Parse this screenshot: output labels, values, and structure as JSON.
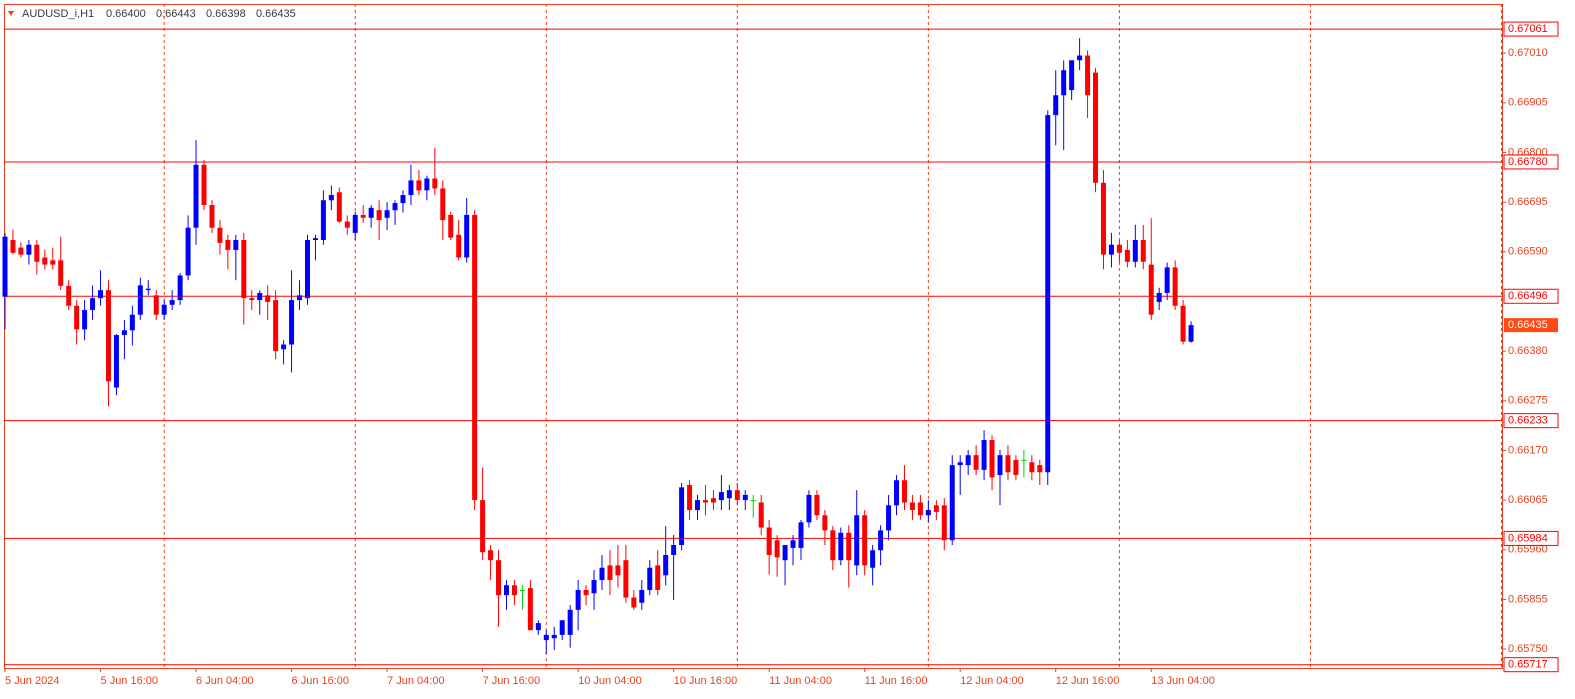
{
  "chart_data": {
    "type": "candlestick",
    "title": "AUDUSD_i,H1",
    "header_values": [
      {
        "value": 0.664,
        "label": "0.66400"
      },
      {
        "value": 0.66443,
        "label": "0.66443"
      },
      {
        "value": 0.66398,
        "label": "0.66398"
      },
      {
        "value": 0.66435,
        "label": "0.66435"
      }
    ],
    "categories": [
      "5 Jun 2024",
      null,
      null,
      null,
      null,
      null,
      null,
      null,
      null,
      null,
      null,
      null,
      "5 Jun 16:00",
      null,
      null,
      null,
      null,
      null,
      null,
      null,
      null,
      null,
      null,
      null,
      "6 Jun 04:00",
      null,
      null,
      null,
      null,
      null,
      null,
      null,
      null,
      null,
      null,
      null,
      "6 Jun 16:00",
      null,
      null,
      null,
      null,
      null,
      null,
      null,
      null,
      null,
      null,
      null,
      "7 Jun 04:00",
      null,
      null,
      null,
      null,
      null,
      null,
      null,
      null,
      null,
      null,
      null,
      "7 Jun 16:00",
      null,
      null,
      null,
      null,
      null,
      null,
      null,
      null,
      null,
      null,
      null,
      "10 Jun 04:00",
      null,
      null,
      null,
      null,
      null,
      null,
      null,
      null,
      null,
      null,
      null,
      "10 Jun 16:00",
      null,
      null,
      null,
      null,
      null,
      null,
      null,
      null,
      null,
      null,
      null,
      "11 Jun 04:00",
      null,
      null,
      null,
      null,
      null,
      null,
      null,
      null,
      null,
      null,
      null,
      "11 Jun 16:00",
      null,
      null,
      null,
      null,
      null,
      null,
      null,
      null,
      null,
      null,
      null,
      "12 Jun 04:00",
      null,
      null,
      null,
      null,
      null,
      null,
      null,
      null,
      null,
      null,
      null,
      "12 Jun 16:00",
      null,
      null,
      null,
      null,
      null,
      null,
      null,
      null,
      null,
      null,
      null,
      "13 Jun 04:00",
      null,
      null,
      null,
      null,
      null
    ],
    "open": [
      0.66495,
      0.66615,
      0.66599,
      0.66584,
      0.66605,
      0.66578,
      0.66572,
      0.66572,
      0.66518,
      0.66476,
      0.66426,
      0.66467,
      0.66492,
      0.66509,
      0.66303,
      0.66414,
      0.66424,
      0.66457,
      0.66509,
      0.66498,
      0.66457,
      0.66478,
      0.66488,
      0.6654,
      0.66641,
      0.66774,
      0.66689,
      0.66641,
      0.66615,
      0.66594,
      0.66615,
      0.66492,
      0.66488,
      0.66498,
      0.66488,
      0.66384,
      0.66394,
      0.66488,
      0.66492,
      0.66615,
      0.66615,
      0.66699,
      0.66716,
      0.66654,
      0.6663,
      0.66668,
      0.66662,
      0.66678,
      0.66662,
      0.66678,
      0.66693,
      0.6671,
      0.66741,
      0.6672,
      0.66745,
      0.66724,
      0.66668,
      0.66626,
      0.66578,
      0.66668,
      0.66065,
      0.65959,
      0.65938,
      0.65864,
      0.65885,
      0.65875,
      0.65879,
      0.6579,
      0.65769,
      0.65773,
      0.6578,
      0.6578,
      0.65833,
      0.65875,
      0.65868,
      0.65896,
      0.65927,
      0.65927,
      0.65938,
      0.65859,
      0.65848,
      0.65875,
      0.65927,
      0.65906,
      0.65949,
      0.6597,
      0.66097,
      0.66044,
      0.66065,
      0.66069,
      0.66065,
      0.66069,
      0.66086,
      0.66065,
      0.66065,
      0.6606,
      0.66007,
      0.6598,
      0.65938,
      0.65964,
      0.65964,
      0.66018,
      0.66076,
      0.66033,
      0.66001,
      0.65938,
      0.65996,
      0.65927,
      0.66033,
      0.65922,
      0.65959,
      0.66001,
      0.66054,
      0.66107,
      0.6606,
      0.6606,
      0.66033,
      0.66054,
      0.66054,
      0.6598,
      0.66139,
      0.66139,
      0.6616,
      0.66129,
      0.66192,
      0.66118,
      0.6616,
      0.6615,
      0.6615,
      0.66145,
      0.66139,
      0.66124,
      0.66879,
      0.66921,
      0.66932,
      0.66995,
      0.67005,
      0.66969,
      0.66736,
      0.66584,
      0.66605,
      0.66594,
      0.66569,
      0.66615,
      0.66563,
      0.66484,
      0.66503,
      0.66557,
      0.66476,
      0.664
    ],
    "high": [
      0.6663,
      0.66637,
      0.6661,
      0.66615,
      0.66615,
      0.66595,
      0.66599,
      0.66622,
      0.6653,
      0.66488,
      0.66488,
      0.66519,
      0.66551,
      0.6653,
      0.66416,
      0.66446,
      0.66476,
      0.66535,
      0.6653,
      0.66509,
      0.66488,
      0.66509,
      0.66545,
      0.66667,
      0.66826,
      0.66784,
      0.66699,
      0.66657,
      0.66626,
      0.66626,
      0.6663,
      0.66509,
      0.66509,
      0.66519,
      0.66509,
      0.66403,
      0.66551,
      0.6653,
      0.66626,
      0.66626,
      0.6672,
      0.6673,
      0.66726,
      0.66667,
      0.66675,
      0.66689,
      0.66689,
      0.66699,
      0.66695,
      0.66699,
      0.6672,
      0.66774,
      0.66763,
      0.66751,
      0.6681,
      0.66741,
      0.66675,
      0.66657,
      0.66704,
      0.66678,
      0.66134,
      0.6597,
      0.65959,
      0.65896,
      0.65896,
      0.65885,
      0.65896,
      0.65811,
      0.6579,
      0.65797,
      0.65811,
      0.65843,
      0.65896,
      0.65885,
      0.65917,
      0.65949,
      0.65959,
      0.6597,
      0.6597,
      0.65875,
      0.65896,
      0.65938,
      0.65959,
      0.6601,
      0.65991,
      0.66101,
      0.66107,
      0.66076,
      0.66097,
      0.66086,
      0.66118,
      0.66097,
      0.66101,
      0.66086,
      0.66076,
      0.66076,
      0.66023,
      0.65991,
      0.65959,
      0.65991,
      0.66023,
      0.66086,
      0.66086,
      0.66044,
      0.6601,
      0.66007,
      0.66012,
      0.66086,
      0.66044,
      0.6597,
      0.66012,
      0.66076,
      0.66118,
      0.66139,
      0.66076,
      0.66076,
      0.66065,
      0.66065,
      0.66069,
      0.6616,
      0.6616,
      0.66171,
      0.66181,
      0.66213,
      0.66202,
      0.66171,
      0.66181,
      0.6616,
      0.66171,
      0.6616,
      0.6615,
      0.66889,
      0.66974,
      0.66995,
      0.66995,
      0.67042,
      0.67016,
      0.66979,
      0.66763,
      0.6663,
      0.66615,
      0.66615,
      0.66647,
      0.66647,
      0.66661,
      0.66514,
      0.66567,
      0.66572,
      0.66488,
      0.66443
    ],
    "low": [
      0.66426,
      0.66584,
      0.66578,
      0.66563,
      0.66542,
      0.66553,
      0.66553,
      0.66509,
      0.66467,
      0.66394,
      0.66403,
      0.66446,
      0.66476,
      0.66263,
      0.66287,
      0.66363,
      0.66392,
      0.66446,
      0.66498,
      0.66446,
      0.66446,
      0.66467,
      0.66478,
      0.6653,
      0.66605,
      0.66678,
      0.6663,
      0.66584,
      0.66553,
      0.6653,
      0.66436,
      0.66467,
      0.66457,
      0.66446,
      0.66363,
      0.66352,
      0.66335,
      0.66467,
      0.66478,
      0.66572,
      0.66605,
      0.66678,
      0.66651,
      0.66626,
      0.66615,
      0.66651,
      0.66641,
      0.66615,
      0.66636,
      0.66647,
      0.66673,
      0.66689,
      0.6671,
      0.66699,
      0.6671,
      0.66615,
      0.66615,
      0.66572,
      0.66567,
      0.66044,
      0.65938,
      0.65896,
      0.65797,
      0.65833,
      0.65843,
      0.65833,
      0.6579,
      0.6578,
      0.6574,
      0.65748,
      0.65769,
      0.65753,
      0.6579,
      0.65843,
      0.65833,
      0.65875,
      0.65864,
      0.6588,
      0.65848,
      0.65833,
      0.65833,
      0.65864,
      0.65864,
      0.65885,
      0.65854,
      0.65959,
      0.66023,
      0.66023,
      0.66033,
      0.66044,
      0.66044,
      0.66044,
      0.66054,
      0.66044,
      0.66028,
      0.65991,
      0.65908,
      0.65903,
      0.65885,
      0.65927,
      0.65938,
      0.66007,
      0.66023,
      0.6597,
      0.65917,
      0.65927,
      0.6588,
      0.65906,
      0.65906,
      0.65885,
      0.65927,
      0.6598,
      0.66033,
      0.66044,
      0.66023,
      0.66023,
      0.66018,
      0.66023,
      0.65959,
      0.6597,
      0.66076,
      0.66118,
      0.66118,
      0.66107,
      0.66086,
      0.66054,
      0.66107,
      0.66107,
      0.66113,
      0.66107,
      0.66097,
      0.66097,
      0.66815,
      0.66805,
      0.66911,
      0.66974,
      0.66873,
      0.66716,
      0.66553,
      0.66557,
      0.66567,
      0.66557,
      0.66557,
      0.66553,
      0.66446,
      0.66467,
      0.66488,
      0.66467,
      0.66394,
      0.66398
    ],
    "close": [
      0.66622,
      0.66588,
      0.66584,
      0.66605,
      0.66569,
      0.66563,
      0.66563,
      0.66518,
      0.66476,
      0.66426,
      0.66467,
      0.66492,
      0.66509,
      0.66316,
      0.66414,
      0.66424,
      0.66457,
      0.66519,
      0.66512,
      0.66457,
      0.66478,
      0.66488,
      0.6654,
      0.66641,
      0.66774,
      0.66689,
      0.66641,
      0.66609,
      0.66594,
      0.66615,
      0.66492,
      0.66488,
      0.66503,
      0.66484,
      0.6638,
      0.66394,
      0.66488,
      0.66498,
      0.66615,
      0.66619,
      0.66699,
      0.6671,
      0.66654,
      0.66641,
      0.66668,
      0.66662,
      0.66683,
      0.66657,
      0.66678,
      0.66693,
      0.6671,
      0.66741,
      0.6672,
      0.66745,
      0.66724,
      0.66657,
      0.6662,
      0.66578,
      0.66668,
      0.66065,
      0.65955,
      0.65938,
      0.65864,
      0.65885,
      0.65864,
      0.65875,
      0.6579,
      0.65805,
      0.6578,
      0.6578,
      0.65811,
      0.65833,
      0.65875,
      0.65864,
      0.65896,
      0.65922,
      0.65896,
      0.65906,
      0.65859,
      0.65838,
      0.65875,
      0.65922,
      0.65875,
      0.65949,
      0.6597,
      0.66092,
      0.66044,
      0.66065,
      0.6606,
      0.6606,
      0.66082,
      0.66086,
      0.66065,
      0.66076,
      0.66065,
      0.66007,
      0.65949,
      0.65944,
      0.6597,
      0.6598,
      0.66018,
      0.66076,
      0.66033,
      0.66001,
      0.65938,
      0.65996,
      0.65938,
      0.66033,
      0.65927,
      0.65959,
      0.66001,
      0.66054,
      0.66107,
      0.6606,
      0.66044,
      0.66033,
      0.66044,
      0.6604,
      0.6598,
      0.66139,
      0.66145,
      0.6616,
      0.66129,
      0.66192,
      0.66113,
      0.6616,
      0.66124,
      0.66118,
      0.6615,
      0.66124,
      0.66124,
      0.66879,
      0.66921,
      0.66974,
      0.66995,
      0.67005,
      0.66921,
      0.66736,
      0.66584,
      0.66605,
      0.66588,
      0.66569,
      0.66615,
      0.66569,
      0.66457,
      0.66503,
      0.66557,
      0.66476,
      0.664,
      0.66435
    ],
    "up_color": "#0000ff",
    "down_color": "#ff0000",
    "flat_color": "#00d000",
    "level_color": "#ff0000",
    "levels": [
      0.67061,
      {
        "value": 0.6678,
        "label": "0.66780"
      },
      0.66496,
      0.66233,
      0.65984,
      0.65717
    ],
    "current_price": 0.66435,
    "current_price_color": "#ff4a14",
    "ylim": [
      0.6571,
      0.67114
    ],
    "yticks": [
      {
        "value": 0.6701,
        "label": "0.67010"
      },
      0.66905,
      {
        "value": 0.668,
        "label": "0.66800"
      },
      0.66695,
      {
        "value": 0.6659,
        "label": "0.66590"
      },
      {
        "value": 0.6638,
        "label": "0.66380"
      },
      0.66275,
      {
        "value": 0.6617,
        "label": "0.66170"
      },
      0.66065,
      {
        "value": 0.6596,
        "label": "0.65960"
      },
      0.65855,
      {
        "value": 0.6575,
        "label": "0.65750"
      }
    ]
  }
}
